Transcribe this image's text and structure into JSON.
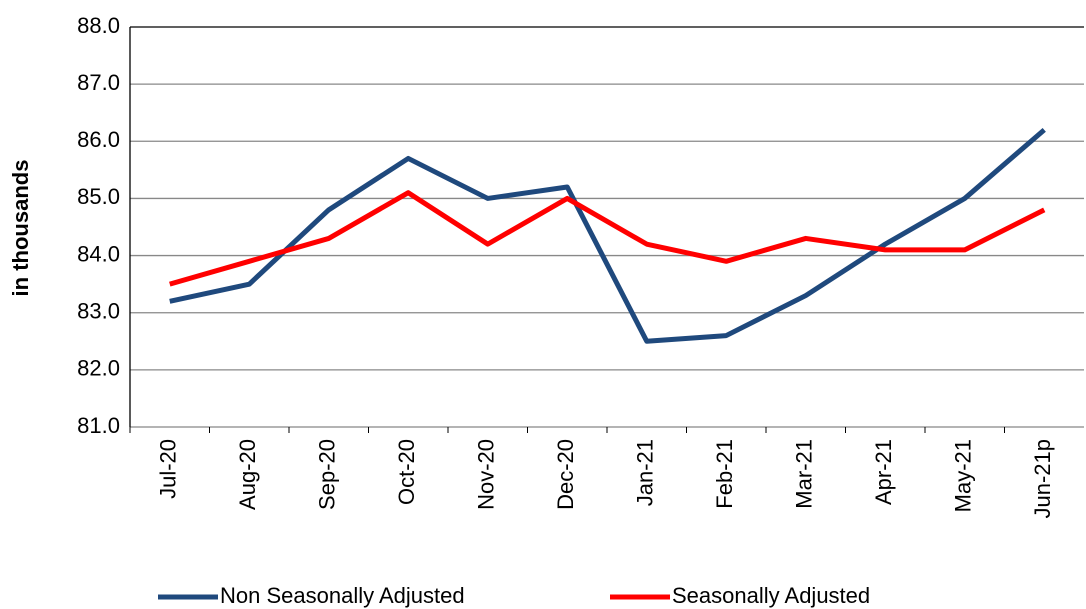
{
  "chart_data": {
    "type": "line",
    "ylabel": "in thousands",
    "categories": [
      "Jul-20",
      "Aug-20",
      "Sep-20",
      "Oct-20",
      "Nov-20",
      "Dec-20",
      "Jan-21",
      "Feb-21",
      "Mar-21",
      "Apr-21",
      "May-21",
      "Jun-21p"
    ],
    "series": [
      {
        "name": "Non Seasonally Adjusted",
        "color": "#1f497d",
        "values": [
          83.2,
          83.5,
          84.8,
          85.7,
          85.0,
          85.2,
          82.5,
          82.6,
          83.3,
          84.2,
          85.0,
          86.2
        ]
      },
      {
        "name": "Seasonally Adjusted",
        "color": "#ff0000",
        "values": [
          83.5,
          83.9,
          84.3,
          85.1,
          84.2,
          85.0,
          84.2,
          83.9,
          84.3,
          84.1,
          84.1,
          84.8
        ]
      }
    ],
    "ylim": [
      81,
      88
    ],
    "yticks": [
      {
        "value": 81,
        "label": "81.0"
      },
      {
        "value": 82,
        "label": "82.0"
      },
      {
        "value": 83,
        "label": "83.0"
      },
      {
        "value": 84,
        "label": "84.0"
      },
      {
        "value": 85,
        "label": "85.0"
      },
      {
        "value": 86,
        "label": "86.0"
      },
      {
        "value": 87,
        "label": "87.0"
      },
      {
        "value": 88,
        "label": "88.0"
      }
    ],
    "grid": true,
    "legend": "bottom"
  }
}
